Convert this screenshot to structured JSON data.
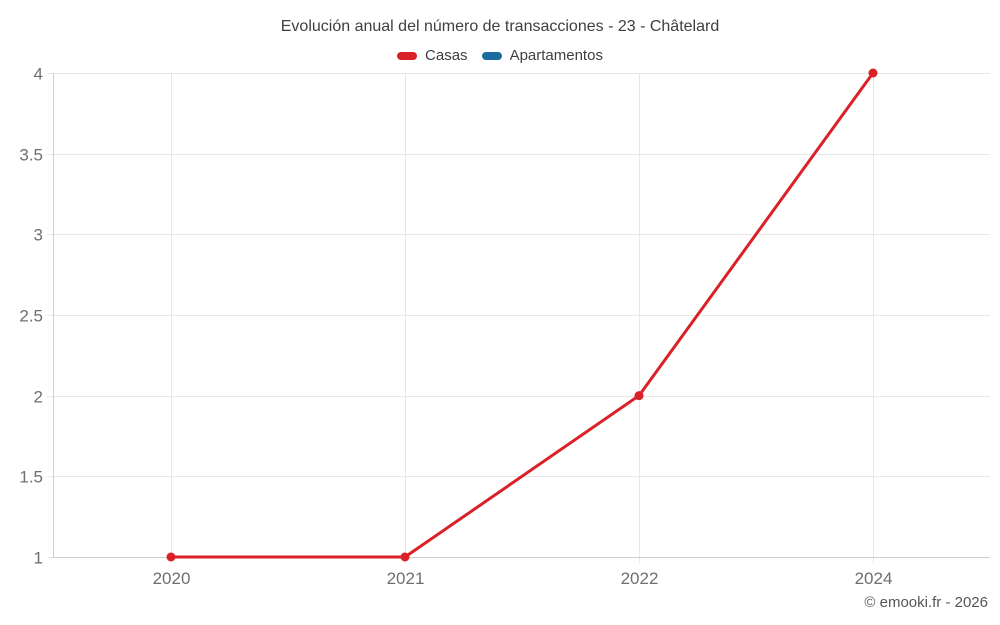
{
  "title": "Evolución anual del número de transacciones - 23 - Châtelard",
  "legend": {
    "items": [
      {
        "label": "Casas",
        "color": "#db2128"
      },
      {
        "label": "Apartamentos",
        "color": "#1a6d9e"
      }
    ]
  },
  "footer": {
    "copyright": "© emooki.fr - 2026"
  },
  "colors": {
    "casas": "#db2128",
    "apartamentos": "#1a6d9e",
    "gridline": "#e7e7e7",
    "axis": "#cfcfcf",
    "tick_text": "#6f6f6f"
  },
  "chart_data": {
    "type": "line",
    "title": "Evolución anual del número de transacciones - 23 - Châtelard",
    "categories": [
      "2020",
      "2021",
      "2022",
      "2024"
    ],
    "series": [
      {
        "name": "Casas",
        "color": "#db2128",
        "values": [
          1,
          1,
          2,
          4
        ]
      },
      {
        "name": "Apartamentos",
        "color": "#1a6d9e",
        "values": []
      }
    ],
    "xlabel": "",
    "ylabel": "",
    "ylim": [
      1,
      4
    ],
    "yticks": [
      1,
      1.5,
      2,
      2.5,
      3,
      3.5,
      4
    ],
    "grid": true,
    "legend_position": "top"
  }
}
